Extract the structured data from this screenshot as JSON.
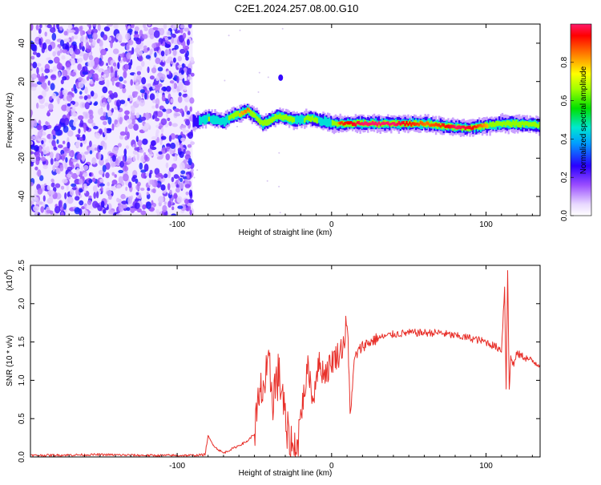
{
  "title": "C2E1.2024.257.08.00.G10",
  "chart_data": [
    {
      "type": "heatmap",
      "xlabel": "Height of straight line (km)",
      "ylabel": "Frequency (Hz)",
      "xlim": [
        -195,
        135
      ],
      "ylim": [
        -50,
        50
      ],
      "xticks": [
        -100,
        0,
        100
      ],
      "xtick_labels": [
        "-100",
        "0",
        "100"
      ],
      "yticks": [
        -40,
        -20,
        0,
        20,
        40
      ],
      "ytick_labels": [
        "-40",
        "-20",
        "0",
        "20",
        "40"
      ],
      "colorbar": {
        "label": "Normalized spectral amplitude",
        "range": [
          0,
          1
        ],
        "ticks": [
          0.0,
          0.2,
          0.4,
          0.6,
          0.8
        ],
        "tick_labels": [
          "0.0",
          "0.2",
          "0.4",
          "0.6",
          "0.8"
        ]
      },
      "noise_region_x": [
        -195,
        -90
      ],
      "ridge": {
        "x": [
          -90,
          -85,
          -80,
          -75,
          -70,
          -65,
          -60,
          -55,
          -50,
          -45,
          -40,
          -35,
          -30,
          -25,
          -20,
          -15,
          -10,
          -5,
          0,
          5,
          20,
          40,
          60,
          70,
          80,
          90,
          100,
          110,
          120,
          135
        ],
        "frequency": [
          -1,
          0,
          1,
          0,
          -1,
          2,
          3,
          5,
          2,
          -2,
          0,
          2,
          1,
          0,
          0,
          1,
          0,
          -1,
          -2,
          -2,
          -2,
          -2,
          -2,
          -3,
          -4,
          -4,
          -3,
          -2,
          -2,
          -3
        ],
        "amplitude": [
          0.3,
          0.45,
          0.6,
          0.55,
          0.5,
          0.7,
          0.8,
          0.85,
          0.7,
          0.6,
          0.65,
          0.7,
          0.6,
          0.6,
          0.55,
          0.7,
          0.6,
          0.55,
          0.6,
          0.9,
          1.0,
          1.0,
          0.85,
          0.9,
          1.0,
          0.95,
          0.8,
          0.75,
          0.65,
          0.6
        ]
      }
    },
    {
      "type": "line",
      "xlabel": "Height of straight line (km)",
      "ylabel": "SNR (10 * v/v)",
      "y_scale_label": "(x10",
      "y_scale_exponent": "4",
      "y_scale_close": ")",
      "xlim": [
        -195,
        135
      ],
      "ylim": [
        0,
        2.5
      ],
      "xticks": [
        -100,
        0,
        100
      ],
      "xtick_labels": [
        "-100",
        "0",
        "100"
      ],
      "yticks": [
        0,
        0.5,
        1.0,
        1.5,
        2.0,
        2.5
      ],
      "ytick_labels": [
        "0.0",
        "0.5",
        "1.0",
        "1.5",
        "2.0",
        "2.5"
      ],
      "color": "#e8302a",
      "series": [
        {
          "x": [
            -195,
            -150,
            -120,
            -100,
            -90,
            -82,
            -80,
            -78,
            -75,
            -70,
            -65,
            -60,
            -55,
            -50,
            -48,
            -45,
            -42,
            -40,
            -38,
            -35,
            -32,
            -30,
            -28,
            -25,
            -22,
            -20,
            -18,
            -15,
            -12,
            -10,
            -8,
            -5,
            -2,
            0,
            2,
            5,
            8,
            10,
            11,
            12,
            15,
            20,
            30,
            40,
            50,
            60,
            70,
            75,
            80,
            90,
            100,
            105,
            110,
            112,
            113,
            114,
            115,
            116,
            118,
            120,
            125,
            130,
            135
          ],
          "y": [
            0.02,
            0.03,
            0.02,
            0.02,
            0.02,
            0.03,
            0.27,
            0.2,
            0.12,
            0.05,
            0.1,
            0.15,
            0.2,
            0.3,
            0.55,
            0.9,
            1.0,
            1.1,
            0.8,
            1.05,
            0.9,
            0.4,
            0.2,
            0.05,
            0.15,
            0.55,
            0.8,
            1.2,
            0.7,
            1.1,
            1.2,
            1.1,
            1.15,
            1.25,
            1.3,
            1.35,
            1.5,
            1.8,
            1.2,
            0.55,
            1.3,
            1.45,
            1.55,
            1.6,
            1.62,
            1.62,
            1.62,
            1.6,
            1.58,
            1.55,
            1.5,
            1.45,
            1.4,
            2.2,
            0.9,
            2.45,
            0.85,
            1.3,
            1.2,
            1.35,
            1.3,
            1.25,
            1.2
          ]
        }
      ]
    }
  ]
}
